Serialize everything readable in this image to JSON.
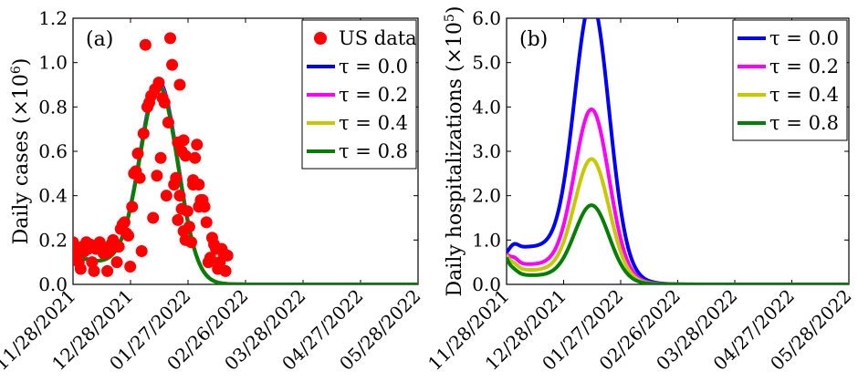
{
  "chart_data": [
    {
      "type": "scatter+line",
      "panel_label": "(a)",
      "ylabel": "Daily cases (×10",
      "ylabel_sup": "6",
      "ylabel_end": ")",
      "xlim": [
        "11/28/2021",
        "05/28/2022"
      ],
      "ylim": [
        0,
        1.2
      ],
      "xticks": [
        "11/28/2021",
        "12/28/2021",
        "01/27/2022",
        "02/26/2022",
        "03/28/2022",
        "04/27/2022",
        "05/28/2022"
      ],
      "yticks": [
        "0.0",
        "0.2",
        "0.4",
        "0.6",
        "0.8",
        "1.0",
        "1.2"
      ],
      "legend_position": "top-right",
      "scatter": {
        "name": "US data",
        "color": "#ff0000",
        "points": [
          [
            0,
            0.19
          ],
          [
            1,
            0.12
          ],
          [
            2,
            0.15
          ],
          [
            3,
            0.1
          ],
          [
            4,
            0.07
          ],
          [
            5,
            0.17
          ],
          [
            6,
            0.15
          ],
          [
            7,
            0.19
          ],
          [
            8,
            0.16
          ],
          [
            9,
            0.18
          ],
          [
            10,
            0.1
          ],
          [
            11,
            0.06
          ],
          [
            12,
            0.16
          ],
          [
            13,
            0.18
          ],
          [
            14,
            0.19
          ],
          [
            15,
            0.16
          ],
          [
            16,
            0.14
          ],
          [
            17,
            0.14
          ],
          [
            18,
            0.06
          ],
          [
            19,
            0.15
          ],
          [
            20,
            0.18
          ],
          [
            21,
            0.2
          ],
          [
            22,
            0.18
          ],
          [
            23,
            0.1
          ],
          [
            24,
            0.17
          ],
          [
            25,
            0.25
          ],
          [
            26,
            0.27
          ],
          [
            27,
            0.28
          ],
          [
            28,
            0.23
          ],
          [
            29,
            0.22
          ],
          [
            30,
            0.08
          ],
          [
            31,
            0.35
          ],
          [
            32,
            0.5
          ],
          [
            33,
            0.51
          ],
          [
            34,
            0.59
          ],
          [
            35,
            0.48
          ],
          [
            36,
            0.15
          ],
          [
            37,
            0.68
          ],
          [
            38,
            1.08
          ],
          [
            39,
            0.8
          ],
          [
            40,
            0.82
          ],
          [
            41,
            0.85
          ],
          [
            42,
            0.3
          ],
          [
            43,
            0.88
          ],
          [
            44,
            0.49
          ],
          [
            45,
            0.91
          ],
          [
            46,
            0.57
          ],
          [
            47,
            0.84
          ],
          [
            48,
            0.82
          ],
          [
            49,
            0.4
          ],
          [
            50,
            0.73
          ],
          [
            51,
            1.11
          ],
          [
            52,
            0.99
          ],
          [
            53,
            0.45
          ],
          [
            54,
            0.48
          ],
          [
            55,
            0.29
          ],
          [
            56,
            0.4
          ],
          [
            57,
            0.34
          ],
          [
            58,
            0.24
          ],
          [
            59,
            0.2
          ],
          [
            60,
            0.33
          ],
          [
            61,
            0.26
          ],
          [
            62,
            0.19
          ],
          [
            63,
            0.47
          ],
          [
            64,
            0.57
          ],
          [
            65,
            0.63
          ],
          [
            66,
            0.45
          ],
          [
            67,
            0.38
          ],
          [
            68,
            0.38
          ],
          [
            69,
            0.35
          ],
          [
            70,
            0.28
          ],
          [
            71,
            0.1
          ],
          [
            72,
            0.12
          ],
          [
            73,
            0.21
          ],
          [
            74,
            0.18
          ],
          [
            75,
            0.16
          ],
          [
            76,
            0.07
          ],
          [
            77,
            0.1
          ],
          [
            78,
            0.16
          ],
          [
            79,
            0.14
          ],
          [
            80,
            0.06
          ],
          [
            81,
            0.13
          ],
          [
            55,
            0.64
          ],
          [
            56,
            0.9
          ],
          [
            57,
            0.6
          ],
          [
            58,
            0.65
          ],
          [
            59,
            0.58
          ],
          [
            63,
            0.45
          ],
          [
            66,
            0.35
          ]
        ]
      },
      "series": [
        {
          "name": "τ = 0.0",
          "color": "#0000ff",
          "peak_day": 45,
          "peak": 0.82,
          "base": 0.1,
          "start": 0.19,
          "width": 13,
          "tail": 0
        },
        {
          "name": "τ = 0.2",
          "color": "#ff00ff",
          "peak_day": 45,
          "peak": 0.81,
          "base": 0.1,
          "start": 0.18,
          "width": 13,
          "tail": 0
        },
        {
          "name": "τ = 0.4",
          "color": "#c8c800",
          "peak_day": 45,
          "peak": 0.8,
          "base": 0.1,
          "start": 0.17,
          "width": 13,
          "tail": 0
        },
        {
          "name": "τ = 0.8",
          "color": "#007f00",
          "peak_day": 45,
          "peak": 0.8,
          "base": 0.1,
          "start": 0.17,
          "width": 13,
          "tail": 0
        }
      ]
    },
    {
      "type": "line",
      "panel_label": "(b)",
      "ylabel": "Daily hospitalizations (×10",
      "ylabel_sup": "5",
      "ylabel_end": ")",
      "xlim": [
        "11/28/2021",
        "05/28/2022"
      ],
      "ylim": [
        0,
        6
      ],
      "xticks": [
        "11/28/2021",
        "12/28/2021",
        "01/27/2022",
        "02/26/2022",
        "03/28/2022",
        "04/27/2022",
        "05/28/2022"
      ],
      "yticks": [
        "0.0",
        "1.0",
        "2.0",
        "3.0",
        "4.0",
        "5.0",
        "6.0"
      ],
      "legend_position": "top-right",
      "series": [
        {
          "name": "τ = 0.0",
          "color": "#0000ff",
          "peak_day": 45,
          "peak": 5.62,
          "base": 0.85,
          "start": 0.7,
          "bump": 0.95,
          "width": 12
        },
        {
          "name": "τ = 0.2",
          "color": "#ff00ff",
          "peak_day": 45,
          "peak": 3.53,
          "base": 0.45,
          "start": 0.68,
          "bump": 0.55,
          "width": 12
        },
        {
          "name": "τ = 0.4",
          "color": "#c8c800",
          "peak_day": 45,
          "peak": 2.53,
          "base": 0.32,
          "start": 0.65,
          "bump": 0.4,
          "width": 12
        },
        {
          "name": "τ = 0.8",
          "color": "#007f00",
          "peak_day": 45,
          "peak": 1.6,
          "base": 0.2,
          "start": 0.6,
          "bump": 0.25,
          "width": 12
        }
      ]
    }
  ]
}
